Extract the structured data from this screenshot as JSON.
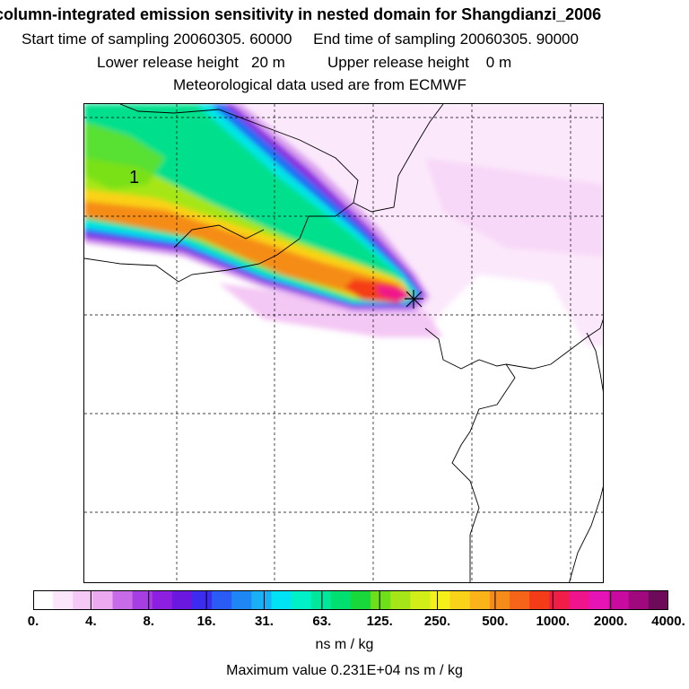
{
  "header": {
    "title": "column-integrated emission sensitivity in nested domain for Shangdianzi_2006",
    "start_label": "Start time of sampling",
    "start_value": "20060305. 60000",
    "end_label": "End time of sampling",
    "end_value": "20060305. 90000",
    "lower_label": "Lower release height",
    "lower_value": "20 m",
    "upper_label": "Upper release height",
    "upper_value": "0 m",
    "met_text": "Meteorological data used are from ECMWF"
  },
  "map": {
    "contour_label": "1",
    "release_marker": "release-site-cross"
  },
  "colorbar": {
    "colors": [
      "#ffffff",
      "#fbe6fb",
      "#f6c8f6",
      "#eca9f0",
      "#c86be8",
      "#a63ee3",
      "#8d1fe0",
      "#6a18e0",
      "#3c2cf0",
      "#2a5cf5",
      "#1f86f5",
      "#19b0f5",
      "#00e3f5",
      "#00f0c8",
      "#00e69b",
      "#00e070",
      "#19d83c",
      "#6ee019",
      "#a6e619",
      "#d2ee19",
      "#f5f019",
      "#fad219",
      "#fab419",
      "#f58c19",
      "#f56419",
      "#f53c19",
      "#f01e46",
      "#f0148c",
      "#e614b4",
      "#c80aa0",
      "#a0087d",
      "#6e0a5a"
    ],
    "tick_labels": [
      "0.",
      "4.",
      "8.",
      "16.",
      "31.",
      "63.",
      "125.",
      "250.",
      "500.",
      "1000.",
      "2000.",
      "4000."
    ],
    "units": "ns m / kg"
  },
  "max_value": {
    "label": "Maximum value",
    "value": "0.231E+04 ns m / kg"
  }
}
